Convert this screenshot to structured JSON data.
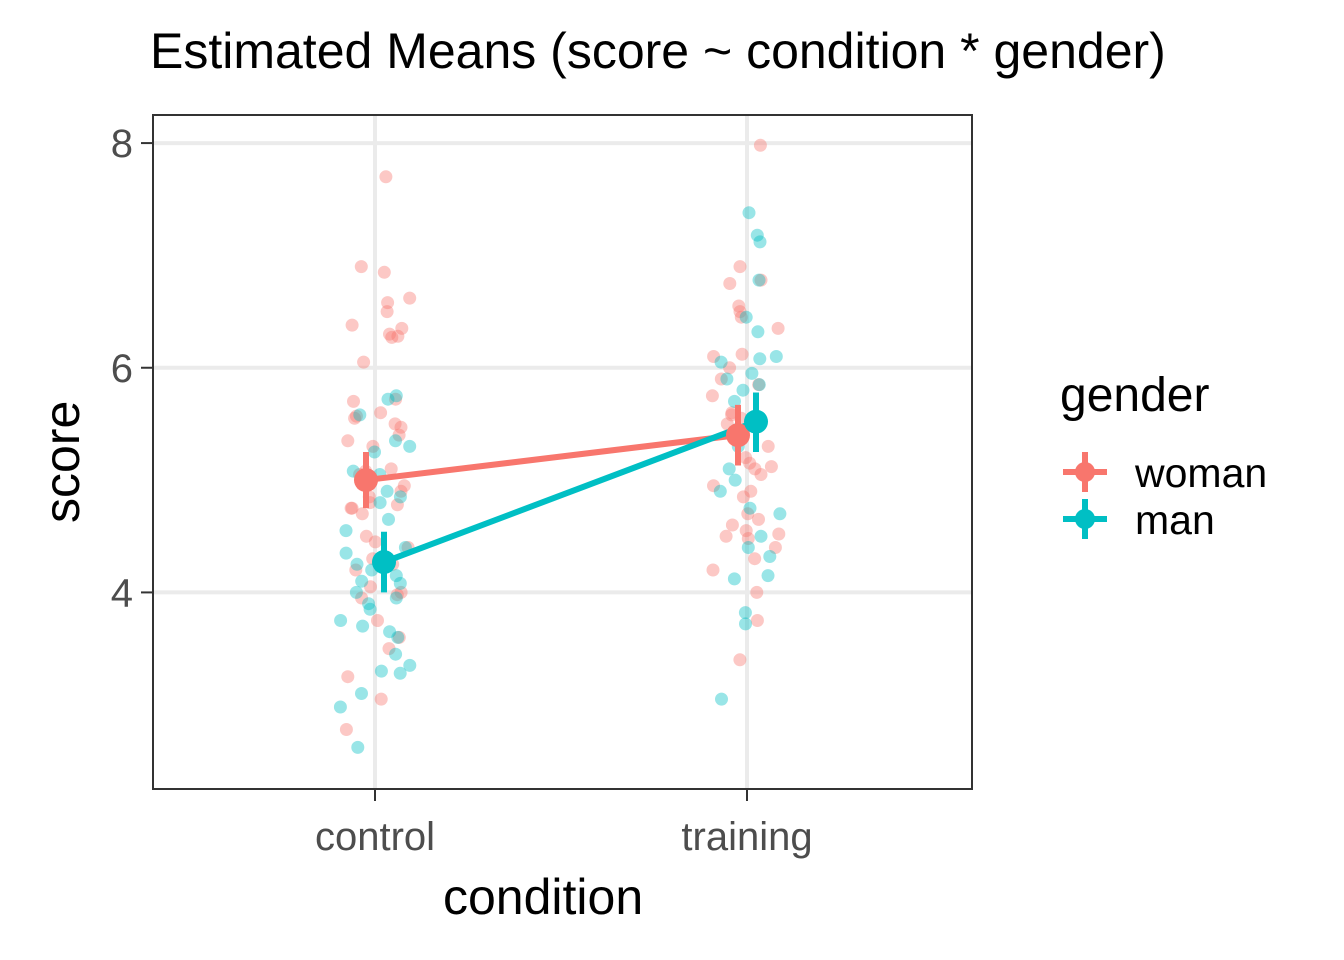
{
  "chart_data": {
    "type": "scatter",
    "title": "Estimated Means (score ~ condition * gender)",
    "xlabel": "condition",
    "ylabel": "score",
    "categories": [
      "control",
      "training"
    ],
    "ylim": [
      2.25,
      8.25
    ],
    "yticks": [
      4,
      6,
      8
    ],
    "grid": true,
    "legend": {
      "title": "gender",
      "position": "right"
    },
    "colors": {
      "woman": "#F8766D",
      "man": "#00BFC4"
    },
    "series": [
      {
        "name": "woman",
        "color": "#F8766D",
        "means": [
          5.0,
          5.4
        ],
        "ci_low": [
          4.75,
          5.13
        ],
        "ci_high": [
          5.25,
          5.67
        ],
        "points": {
          "control": [
            7.7,
            6.9,
            6.85,
            6.62,
            6.58,
            6.5,
            6.38,
            6.35,
            6.3,
            6.28,
            6.27,
            6.05,
            5.72,
            5.7,
            5.6,
            5.57,
            5.55,
            5.5,
            5.47,
            5.4,
            5.35,
            5.3,
            5.1,
            5.08,
            5.05,
            5.0,
            4.95,
            4.9,
            4.85,
            4.8,
            4.78,
            4.75,
            4.75,
            4.7,
            4.5,
            4.45,
            4.4,
            4.3,
            4.25,
            4.2,
            4.05,
            4.0,
            3.98,
            3.95,
            3.75,
            3.6,
            3.5,
            3.25,
            3.05,
            2.78
          ],
          "training": [
            7.98,
            6.9,
            6.78,
            6.75,
            6.55,
            6.5,
            6.45,
            6.35,
            6.12,
            6.1,
            6.0,
            5.9,
            5.85,
            5.75,
            5.6,
            5.58,
            5.55,
            5.5,
            5.3,
            5.2,
            5.15,
            5.12,
            5.1,
            5.05,
            4.95,
            4.9,
            4.85,
            4.7,
            4.65,
            4.6,
            4.55,
            4.52,
            4.5,
            4.48,
            4.4,
            4.3,
            4.2,
            4.0,
            3.75,
            3.4
          ]
        }
      },
      {
        "name": "man",
        "color": "#00BFC4",
        "means": [
          4.27,
          5.52
        ],
        "ci_low": [
          4.0,
          5.25
        ],
        "ci_high": [
          4.54,
          5.78
        ],
        "points": {
          "control": [
            5.75,
            5.72,
            5.58,
            5.35,
            5.3,
            5.25,
            5.08,
            5.05,
            4.9,
            4.85,
            4.8,
            4.65,
            4.55,
            4.4,
            4.35,
            4.25,
            4.2,
            4.15,
            4.1,
            4.08,
            4.0,
            3.95,
            3.9,
            3.85,
            3.75,
            3.7,
            3.65,
            3.6,
            3.45,
            3.35,
            3.3,
            3.28,
            3.1,
            2.98,
            2.62
          ],
          "training": [
            7.38,
            7.18,
            7.12,
            6.78,
            6.45,
            6.32,
            6.1,
            6.08,
            6.05,
            5.95,
            5.9,
            5.85,
            5.8,
            5.7,
            5.55,
            5.45,
            5.3,
            5.1,
            5.0,
            4.9,
            4.75,
            4.7,
            4.5,
            4.4,
            4.32,
            4.15,
            4.12,
            3.82,
            3.72,
            3.05
          ]
        }
      }
    ]
  }
}
